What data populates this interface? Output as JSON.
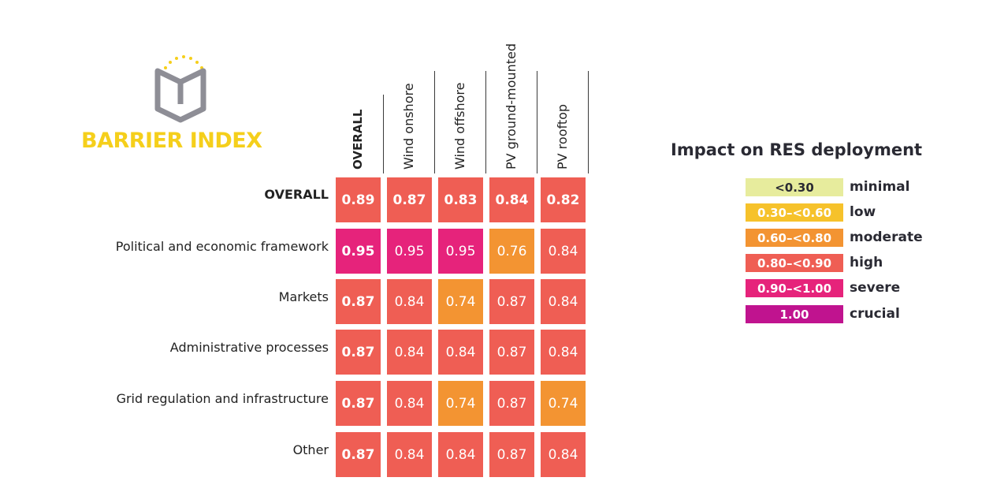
{
  "brand": {
    "name": "BARRIER INDEX",
    "logo_icon": "shield-book-icon"
  },
  "legend": {
    "title": "Impact on RES deployment",
    "items": [
      {
        "range": "<0.30",
        "label": "minimal",
        "color": "#e7ec9d",
        "text_color": "#2a2a33"
      },
      {
        "range": "0.30–<0.60",
        "label": "low",
        "color": "#f6c22b",
        "text_color": "#ffffff"
      },
      {
        "range": "0.60–<0.80",
        "label": "moderate",
        "color": "#f39432",
        "text_color": "#ffffff"
      },
      {
        "range": "0.80–<0.90",
        "label": "high",
        "color": "#ef5e54",
        "text_color": "#ffffff"
      },
      {
        "range": "0.90–<1.00",
        "label": "severe",
        "color": "#e6237b",
        "text_color": "#ffffff"
      },
      {
        "range": "1.00",
        "label": "crucial",
        "color": "#c0138f",
        "text_color": "#ffffff"
      }
    ]
  },
  "chart_data": {
    "type": "heatmap",
    "title": "",
    "columns": [
      "OVERALL",
      "Wind onshore",
      "Wind offshore",
      "PV ground-mounted",
      "PV rooftop"
    ],
    "rows": [
      {
        "label": "OVERALL",
        "values": [
          0.89,
          0.87,
          0.83,
          0.84,
          0.82
        ],
        "colors": [
          "#ef5e54",
          "#ef5e54",
          "#ef5e54",
          "#ef5e54",
          "#ef5e54"
        ]
      },
      {
        "label": "Political and economic framework",
        "values": [
          0.95,
          0.95,
          0.95,
          0.76,
          0.84
        ],
        "colors": [
          "#e6237b",
          "#e6237b",
          "#e6237b",
          "#f39432",
          "#ef5e54"
        ]
      },
      {
        "label": "Markets",
        "values": [
          0.87,
          0.84,
          0.74,
          0.87,
          0.84
        ],
        "colors": [
          "#ef5e54",
          "#ef5e54",
          "#f39432",
          "#ef5e54",
          "#ef5e54"
        ]
      },
      {
        "label": "Administrative processes",
        "values": [
          0.87,
          0.84,
          0.84,
          0.87,
          0.84
        ],
        "colors": [
          "#ef5e54",
          "#ef5e54",
          "#ef5e54",
          "#ef5e54",
          "#ef5e54"
        ]
      },
      {
        "label": "Grid regulation and infrastructure",
        "values": [
          0.87,
          0.84,
          0.74,
          0.87,
          0.74
        ],
        "colors": [
          "#ef5e54",
          "#ef5e54",
          "#f39432",
          "#ef5e54",
          "#f39432"
        ]
      },
      {
        "label": "Other",
        "values": [
          0.87,
          0.84,
          0.84,
          0.87,
          0.84
        ],
        "colors": [
          "#ef5e54",
          "#ef5e54",
          "#ef5e54",
          "#ef5e54",
          "#ef5e54"
        ]
      }
    ]
  }
}
